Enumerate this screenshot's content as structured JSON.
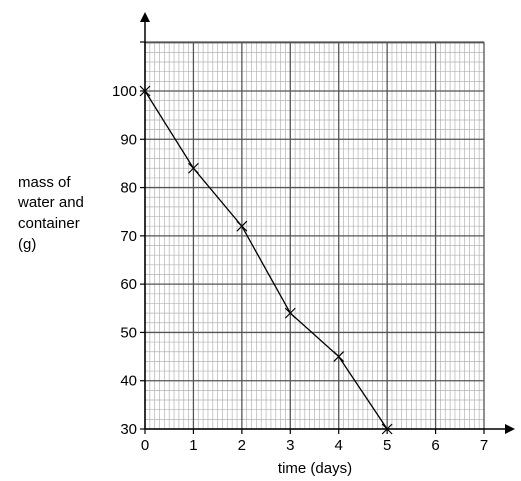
{
  "chart_data": {
    "type": "line",
    "title": "",
    "xlabel": "time (days)",
    "ylabel_lines": [
      "mass of",
      "water and",
      "container",
      "(g)"
    ],
    "x": [
      0,
      1,
      2,
      3,
      4,
      5
    ],
    "series": [
      {
        "values": [
          100,
          84,
          72,
          54,
          45,
          30
        ]
      }
    ],
    "xlim": [
      0,
      7
    ],
    "ylim": [
      30,
      100
    ],
    "x_ticks": [
      "0",
      "1",
      "2",
      "3",
      "4",
      "5",
      "6",
      "7"
    ],
    "y_ticks": [
      "30",
      "40",
      "50",
      "60",
      "70",
      "80",
      "90",
      "100"
    ],
    "grid": true,
    "marker": "cross",
    "colors": {
      "line": "#000000",
      "grid_minor": "#b3b3b3",
      "grid_major": "#555555"
    }
  }
}
